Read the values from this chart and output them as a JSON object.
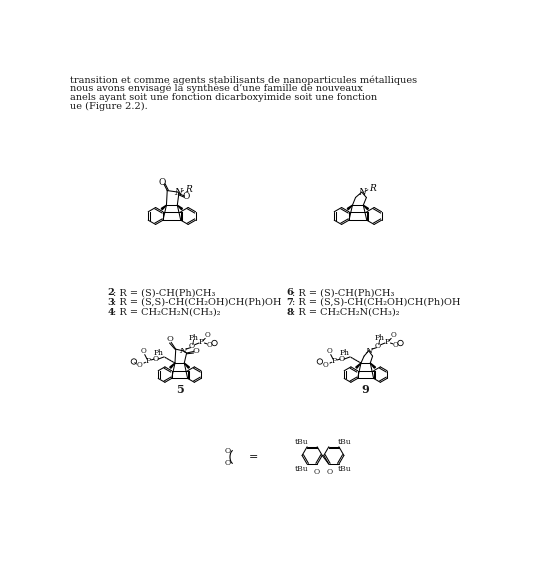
{
  "background_color": "#ffffff",
  "fig_width": 5.38,
  "fig_height": 5.87,
  "dpi": 100,
  "text_color": "#1a1a1a",
  "header_lines": [
    "transition et comme agents stabilisants de nanoparticules métalliques",
    "nous avons envisagé la synthèse d’une famille de nouveaux",
    "anels ayant soit une fonction dicarboxyimide soit une fonction",
    "ue (Figure 2.2)."
  ],
  "labels_left": [
    {
      "bold": "2",
      "text": ": R = (S)-CH(Ph)CH₃"
    },
    {
      "bold": "3",
      "text": ": R = (S,S)-CH(CH₂OH)CH(Ph)OH"
    },
    {
      "bold": "4",
      "text": ": R = CH₂CH₂N(CH₃)₂"
    }
  ],
  "labels_right": [
    {
      "bold": "6",
      "text": ": R = (S)-CH(Ph)CH₃"
    },
    {
      "bold": "7",
      "text": ": R = (S,S)-CH(CH₂OH)CH(Ph)OH"
    },
    {
      "bold": "8",
      "text": ": R = CH₂CH₂N(CH₃)₂"
    }
  ],
  "compound5_label": "5",
  "compound9_label": "9"
}
